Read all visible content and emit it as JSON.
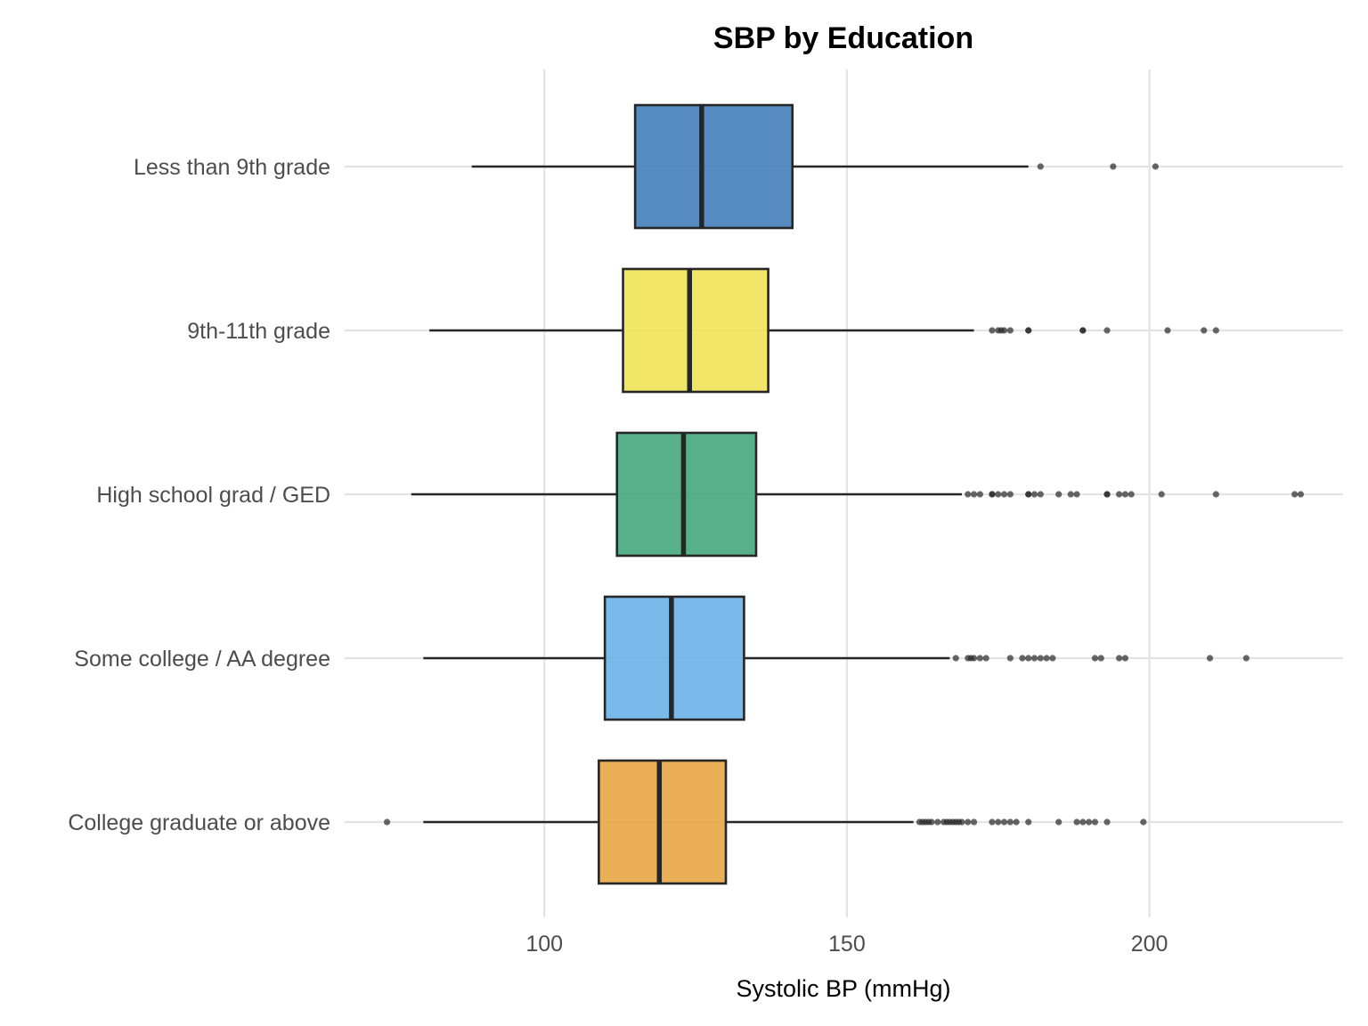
{
  "chart_data": {
    "type": "boxplot",
    "orientation": "horizontal",
    "title": "SBP by Education",
    "xlabel": "Systolic BP (mmHg)",
    "ylabel": "",
    "xlim": [
      67,
      232
    ],
    "xticks": [
      100,
      150,
      200
    ],
    "grid": true,
    "legend": "none",
    "categories": [
      "Less than 9th grade",
      "9th-11th grade",
      "High school grad / GED",
      "Some college / AA degree",
      "College graduate or above"
    ],
    "boxes": [
      {
        "category": "Less than 9th grade",
        "color": "#3a78b5",
        "whisker_low": 88,
        "q1": 115,
        "median": 126,
        "q3": 141,
        "whisker_high": 180,
        "outliers": [
          182,
          194,
          201
        ]
      },
      {
        "category": "9th-11th grade",
        "color": "#f0e24f",
        "whisker_low": 81,
        "q1": 113,
        "median": 124,
        "q3": 137,
        "whisker_high": 171,
        "outliers": [
          174,
          175,
          175.5,
          176,
          177,
          180,
          180,
          189,
          189,
          193,
          203,
          209,
          211
        ]
      },
      {
        "category": "High school grad / GED",
        "color": "#3aa276",
        "whisker_low": 78,
        "q1": 112,
        "median": 123,
        "q3": 135,
        "whisker_high": 169,
        "outliers": [
          170,
          171,
          172,
          174,
          174,
          175,
          176,
          177,
          180,
          180,
          181,
          182,
          185,
          187,
          188,
          193,
          193,
          195,
          196,
          197,
          202,
          211,
          224,
          225
        ]
      },
      {
        "category": "Some college / AA degree",
        "color": "#62aee8",
        "whisker_low": 80,
        "q1": 110,
        "median": 121,
        "q3": 133,
        "whisker_high": 167,
        "outliers": [
          168,
          170,
          170.5,
          171,
          172,
          173,
          177,
          179,
          180,
          181,
          182,
          183,
          184,
          191,
          192,
          195,
          196,
          210,
          216
        ]
      },
      {
        "category": "College graduate or above",
        "color": "#e6a13a",
        "whisker_low": 80,
        "q1": 109,
        "median": 119,
        "q3": 130,
        "whisker_high": 161,
        "outliers": [
          74,
          162,
          162.5,
          163,
          163.5,
          164,
          165,
          166,
          166.5,
          167,
          167.5,
          168,
          168.5,
          169,
          170,
          171,
          174,
          175,
          176,
          177,
          178,
          180,
          185,
          188,
          189,
          190,
          191,
          193,
          199
        ]
      }
    ]
  }
}
